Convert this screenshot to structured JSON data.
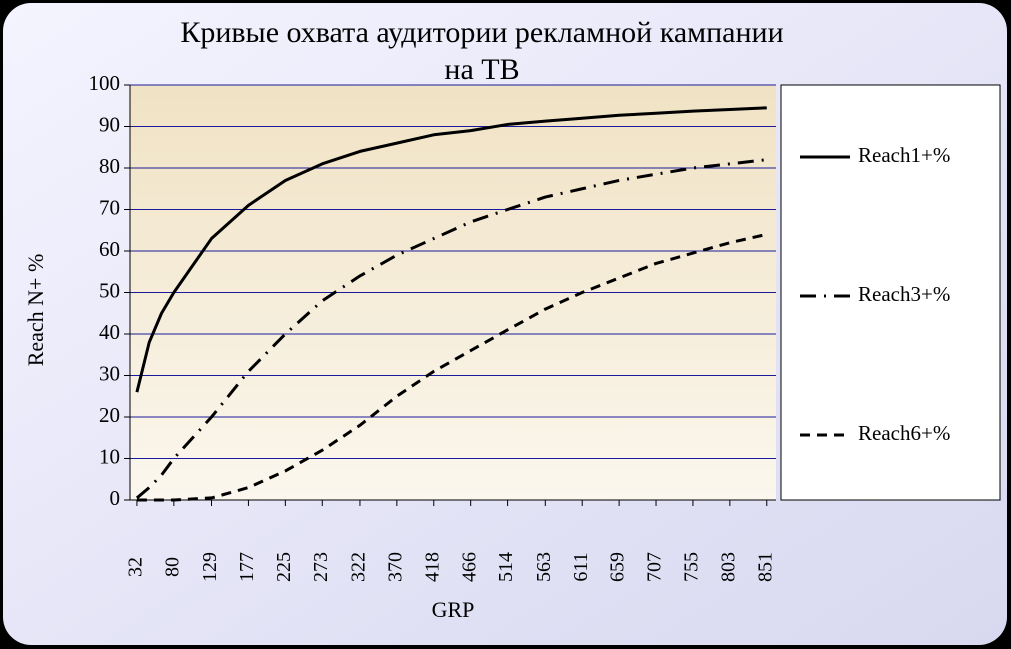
{
  "chart_data": {
    "type": "line",
    "title": [
      "Кривые охвата аудитории рекламной кампании",
      "на ТВ"
    ],
    "x_label": "GRP",
    "y_label": "Reach N+ %",
    "x": [
      32,
      48,
      64,
      80,
      129,
      177,
      225,
      273,
      322,
      370,
      418,
      466,
      514,
      563,
      611,
      659,
      707,
      755,
      803,
      851
    ],
    "series": [
      {
        "name": "Reach1+%",
        "color": "#000000",
        "dash": "solid",
        "values": [
          26,
          38,
          45,
          50,
          63,
          71,
          77,
          81,
          84,
          86,
          88,
          89,
          90.5,
          91.3,
          92,
          92.7,
          93.2,
          93.7,
          94.1,
          94.5
        ]
      },
      {
        "name": "Reach3+%",
        "color": "#000000",
        "dash": "dash-dot",
        "values": [
          0.5,
          3,
          6,
          10,
          20,
          31,
          40,
          48,
          54,
          59,
          63,
          67,
          70,
          73,
          75,
          77,
          78.5,
          80,
          81,
          82
        ]
      },
      {
        "name": "Reach6+%",
        "color": "#000000",
        "dash": "dashed",
        "values": [
          0,
          0,
          0,
          0,
          0.5,
          3,
          7,
          12,
          18,
          25,
          31,
          36,
          41,
          46,
          50,
          53.5,
          57,
          59.5,
          62,
          64
        ]
      }
    ],
    "xlim": [
      23,
      863
    ],
    "xticks": [
      32,
      80,
      129,
      177,
      225,
      273,
      322,
      370,
      418,
      466,
      514,
      563,
      611,
      659,
      707,
      755,
      803,
      851
    ],
    "ylim": [
      0,
      100
    ],
    "yticks": [
      0,
      10,
      20,
      30,
      40,
      50,
      60,
      70,
      80,
      90,
      100
    ],
    "grid": true,
    "grid_color": "#1a1a9a",
    "legend": "right"
  }
}
